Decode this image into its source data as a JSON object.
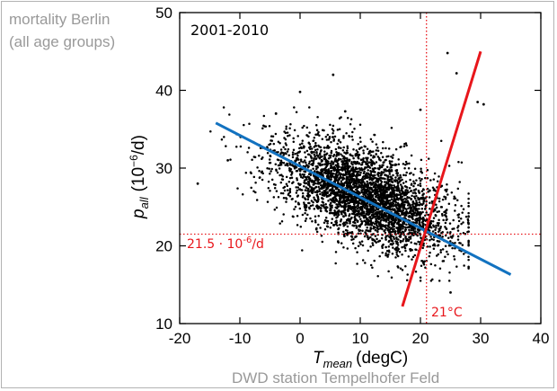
{
  "figure": {
    "title_line1": "mortality Berlin",
    "title_line2": "(all age groups)",
    "source": "DWD station Tempelhofer Feld"
  },
  "chart_data": {
    "type": "scatter",
    "period": "2001-2010",
    "xlabel": {
      "symbol": "T",
      "subscript": "mean",
      "unit": "(degC)"
    },
    "ylabel": {
      "symbol": "p",
      "subscript": "all",
      "unit_prefix": "(10",
      "unit_exp": "−6",
      "unit_suffix": "/d)"
    },
    "xlim": [
      -20,
      40
    ],
    "ylim": [
      10,
      50
    ],
    "xticks": [
      -20,
      -10,
      0,
      10,
      20,
      30,
      40
    ],
    "yticks": [
      10,
      20,
      30,
      40,
      50
    ],
    "grid": false,
    "series": [
      {
        "type": "point_cloud",
        "count": 3653,
        "color": "#000000",
        "clusters": [
          {
            "x_mean": 10.5,
            "x_sd": 7.3,
            "y_mean": 26.6,
            "y_slope": -0.28,
            "y_sd": 3.0
          }
        ],
        "outliers": [
          [
            5.5,
            42.0
          ],
          [
            0,
            39.8
          ],
          [
            -4,
            37
          ],
          [
            7.5,
            37.3
          ],
          [
            24.5,
            44.8
          ],
          [
            26,
            42.2
          ],
          [
            29.5,
            38.5
          ],
          [
            30.5,
            38.2
          ],
          [
            20,
            37.5
          ],
          [
            -17,
            28
          ],
          [
            -12,
            31
          ],
          [
            25,
            14
          ]
        ]
      },
      {
        "type": "line",
        "color": "#1272c0",
        "points": [
          [
            -14,
            35.8
          ],
          [
            35,
            16.3
          ]
        ]
      },
      {
        "type": "line",
        "color": "#e8161b",
        "points": [
          [
            17,
            12.2
          ],
          [
            30,
            45
          ]
        ]
      }
    ],
    "reference_lines": [
      {
        "axis": "x",
        "value": 21,
        "label": "21°C",
        "color": "#e8161b",
        "style": "dotted"
      },
      {
        "axis": "y",
        "value": 21.5,
        "label_value": "21.5 · 10",
        "label_exp": "-6",
        "label_suffix": "/d",
        "color": "#e8161b",
        "style": "dotted"
      }
    ]
  }
}
